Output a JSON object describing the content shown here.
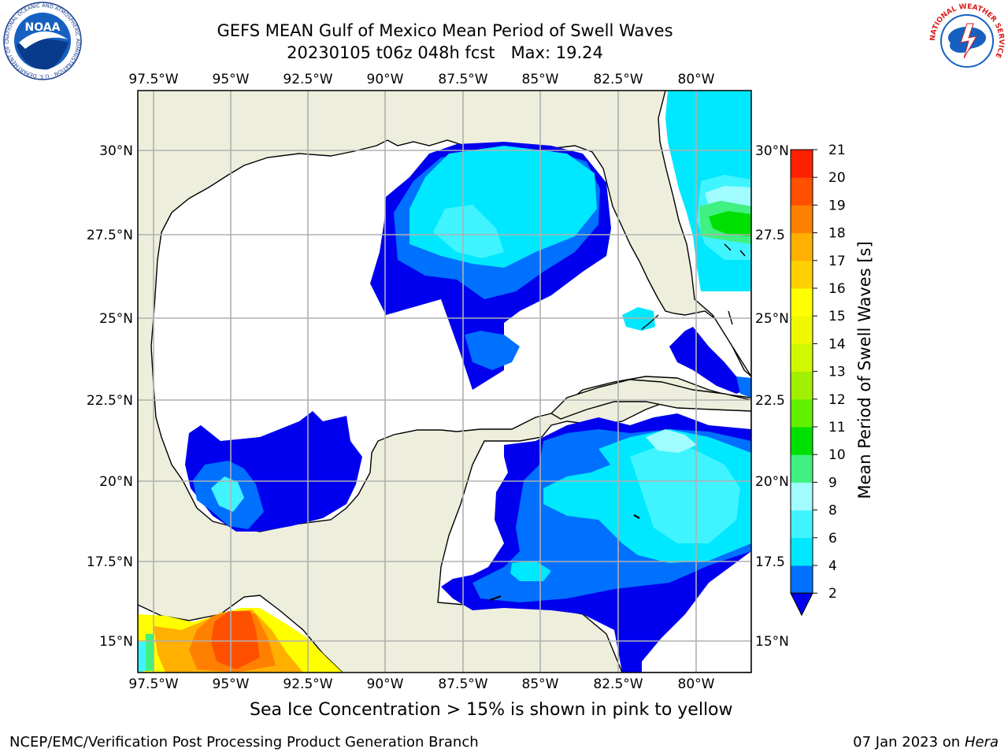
{
  "header": {
    "title_line1": "GEFS MEAN Gulf of Mexico Mean Period of Swell Waves",
    "title_line2": "20230105 t06z 048h fcst   Max: 19.24"
  },
  "logos": {
    "noaa_text": "NOAA",
    "noaa_ring": "NATIONAL OCEANIC AND ATMOSPHERIC ADMINISTRATION · U.S. DEPARTMENT OF COMMERCE",
    "nws_ring": "NATIONAL WEATHER SERVICE"
  },
  "map": {
    "lon_labels": [
      "97.5°W",
      "95°W",
      "92.5°W",
      "90°W",
      "87.5°W",
      "85°W",
      "82.5°W",
      "80°W"
    ],
    "lat_labels_left": [
      "30°N",
      "27.5°N",
      "25°N",
      "22.5°N",
      "20°N",
      "17.5°N",
      "15°N"
    ],
    "lat_labels_right": [
      "30°N",
      "27.5",
      "25°N",
      "22.5",
      "20°N",
      "17.5",
      "15°N"
    ],
    "colors": {
      "land": "#eeeedd",
      "ocean_below_min": "#ffffff",
      "grid": "#b0b0b0"
    }
  },
  "colorbar": {
    "title": "Mean Period of Swell Waves [s]",
    "levels": [
      "2",
      "4",
      "6",
      "8",
      "9",
      "10",
      "11",
      "12",
      "13",
      "14",
      "15",
      "16",
      "17",
      "18",
      "19",
      "20",
      "21"
    ],
    "colors": [
      "#0070ff",
      "#00e8ff",
      "#40f4ff",
      "#a0fcff",
      "#40f080",
      "#00e000",
      "#60f000",
      "#a0f000",
      "#d0f800",
      "#f0f800",
      "#ffff00",
      "#ffd000",
      "#ffb000",
      "#ff8000",
      "#ff5000",
      "#ff2000"
    ],
    "extend_color": "#0000ee"
  },
  "footer": {
    "note": "Sea Ice Concentration > 15% is shown in pink to yellow",
    "credit": "NCEP/EMC/Verification Post Processing Product Generation Branch",
    "date": "07 Jan 2023 on",
    "host": "Hera"
  }
}
